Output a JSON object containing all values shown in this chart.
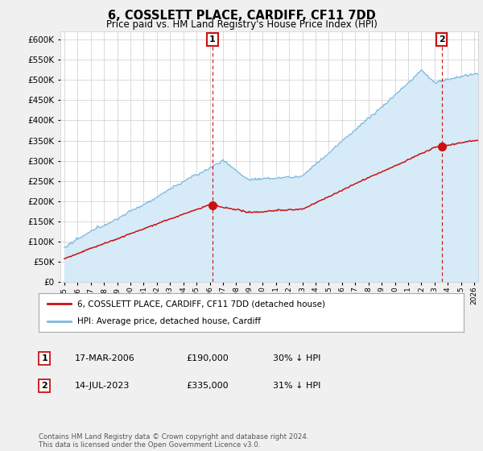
{
  "title": "6, COSSLETT PLACE, CARDIFF, CF11 7DD",
  "subtitle": "Price paid vs. HM Land Registry's House Price Index (HPI)",
  "ylim": [
    0,
    620000
  ],
  "yticks": [
    0,
    50000,
    100000,
    150000,
    200000,
    250000,
    300000,
    350000,
    400000,
    450000,
    500000,
    550000,
    600000
  ],
  "hpi_color": "#7ab9e0",
  "hpi_fill_color": "#d6eaf8",
  "price_color": "#cc1111",
  "transaction1_date": 2006.21,
  "transaction1_price": 190000,
  "transaction2_date": 2023.54,
  "transaction2_price": 335000,
  "legend_line1": "6, COSSLETT PLACE, CARDIFF, CF11 7DD (detached house)",
  "legend_line2": "HPI: Average price, detached house, Cardiff",
  "table_row1": [
    "1",
    "17-MAR-2006",
    "£190,000",
    "30% ↓ HPI"
  ],
  "table_row2": [
    "2",
    "14-JUL-2023",
    "£335,000",
    "31% ↓ HPI"
  ],
  "footer": "Contains HM Land Registry data © Crown copyright and database right 2024.\nThis data is licensed under the Open Government Licence v3.0.",
  "background_color": "#f0f0f0",
  "plot_bg_color": "#ffffff",
  "grid_color": "#cccccc"
}
